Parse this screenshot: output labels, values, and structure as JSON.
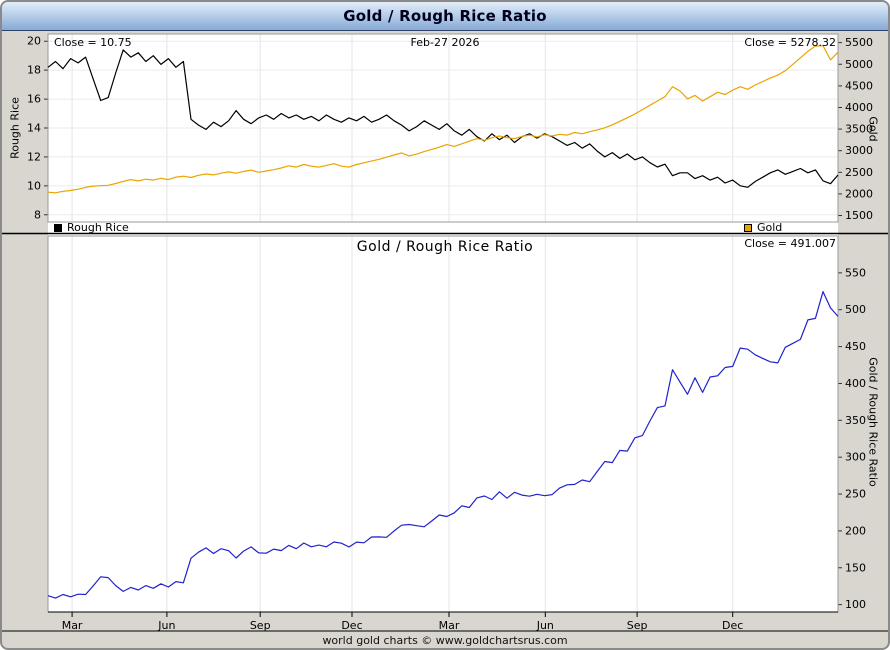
{
  "window": {
    "title": "Gold / Rough Rice Ratio"
  },
  "top_panel": {
    "close_left": "Close = 10.75",
    "date": "Feb-27 2026",
    "close_right": "Close = 5278.32",
    "legend": [
      {
        "label": "Rough Rice",
        "color": "#000000"
      },
      {
        "label": "Gold",
        "color": "#eaa400"
      }
    ]
  },
  "bottom_panel": {
    "title": "Gold / Rough Rice Ratio",
    "close": "Close = 491.007"
  },
  "footer": {
    "text": "world gold charts © www.goldchartsrus.com"
  },
  "chart_data": {
    "type": "line",
    "x_axis": {
      "labels": [
        "Mar",
        "Jun",
        "Sep",
        "Dec",
        "Mar",
        "Jun",
        "Sep",
        "Dec"
      ],
      "fractions": [
        0.0305,
        0.1505,
        0.2686,
        0.3848,
        0.5076,
        0.6295,
        0.7457,
        0.8667
      ]
    },
    "panels": [
      {
        "name": "price-overlay",
        "left_axis": {
          "title": "Rough Rice",
          "min": 7.5,
          "max": 20.5,
          "ticks": [
            8,
            10,
            12,
            14,
            16,
            18,
            20
          ]
        },
        "right_axis": {
          "title": "Gold",
          "min": 1350,
          "max": 5700,
          "ticks": [
            1500,
            2000,
            2500,
            3000,
            3500,
            4000,
            4500,
            5000,
            5500
          ]
        },
        "series": [
          {
            "name": "Rough Rice",
            "axis": "left",
            "color": "#000000",
            "close": 10.75,
            "values": [
              18.2,
              18.6,
              18.1,
              18.8,
              18.5,
              18.9,
              17.4,
              15.9,
              16.1,
              17.8,
              19.4,
              18.9,
              19.2,
              18.6,
              19.0,
              18.4,
              18.8,
              18.2,
              18.6,
              14.6,
              14.2,
              13.9,
              14.4,
              14.1,
              14.5,
              15.2,
              14.6,
              14.3,
              14.7,
              14.9,
              14.6,
              15.0,
              14.7,
              14.9,
              14.6,
              14.8,
              14.5,
              14.9,
              14.6,
              14.4,
              14.7,
              14.5,
              14.8,
              14.4,
              14.6,
              14.9,
              14.5,
              14.2,
              13.8,
              14.1,
              14.5,
              14.2,
              13.9,
              14.3,
              13.8,
              13.5,
              13.9,
              13.4,
              13.1,
              13.6,
              13.2,
              13.5,
              13.0,
              13.4,
              13.6,
              13.3,
              13.6,
              13.4,
              13.1,
              12.8,
              13.0,
              12.6,
              12.9,
              12.4,
              12.0,
              12.3,
              11.9,
              12.2,
              11.8,
              12.0,
              11.6,
              11.3,
              11.5,
              10.7,
              10.9,
              10.9,
              10.5,
              10.7,
              10.4,
              10.6,
              10.2,
              10.4,
              10.0,
              9.9,
              10.3,
              10.6,
              10.9,
              11.1,
              10.8,
              11.0,
              11.2,
              10.9,
              11.1,
              10.35,
              10.15,
              10.75
            ]
          },
          {
            "name": "Gold",
            "axis": "right",
            "color": "#eaa400",
            "close": 5278.32,
            "values": [
              2040,
              2025,
              2060,
              2080,
              2110,
              2150,
              2180,
              2190,
              2200,
              2240,
              2290,
              2330,
              2300,
              2340,
              2320,
              2360,
              2330,
              2390,
              2410,
              2380,
              2430,
              2460,
              2440,
              2480,
              2510,
              2480,
              2520,
              2550,
              2500,
              2530,
              2560,
              2600,
              2650,
              2620,
              2680,
              2640,
              2620,
              2660,
              2700,
              2640,
              2620,
              2680,
              2720,
              2760,
              2800,
              2850,
              2900,
              2950,
              2880,
              2920,
              2980,
              3030,
              3080,
              3140,
              3100,
              3160,
              3220,
              3280,
              3240,
              3300,
              3340,
              3300,
              3280,
              3330,
              3360,
              3320,
              3370,
              3340,
              3380,
              3360,
              3420,
              3390,
              3440,
              3480,
              3530,
              3600,
              3680,
              3760,
              3850,
              3950,
              4050,
              4150,
              4250,
              4480,
              4380,
              4200,
              4280,
              4150,
              4250,
              4350,
              4300,
              4400,
              4480,
              4420,
              4520,
              4600,
              4680,
              4750,
              4850,
              5000,
              5150,
              5300,
              5420,
              5430,
              5100,
              5278.32
            ]
          }
        ]
      },
      {
        "name": "ratio",
        "title": "Gold / Rough Rice Ratio",
        "right_axis": {
          "title": "Gold / Rough Rice Ratio",
          "min": 90,
          "max": 600,
          "ticks": [
            100,
            150,
            200,
            250,
            300,
            350,
            400,
            450,
            500,
            550
          ]
        },
        "series": [
          {
            "name": "Gold / Rough Rice Ratio",
            "axis": "right",
            "color": "#2222cc",
            "close": 491.007,
            "values": [
              112.1,
              108.9,
              113.8,
              110.6,
              114.1,
              113.8,
              125.3,
              137.7,
              136.6,
              125.8,
              118.0,
              123.3,
              119.8,
              125.8,
              122.1,
              128.3,
              123.9,
              131.3,
              129.6,
              163.0,
              171.1,
              177.0,
              169.4,
              175.9,
              173.1,
              163.2,
              172.6,
              178.3,
              170.1,
              169.8,
              175.3,
              173.3,
              180.3,
              175.8,
              183.6,
              178.4,
              180.7,
              178.5,
              184.9,
              183.3,
              178.2,
              184.8,
              183.8,
              191.7,
              191.8,
              191.3,
              200.0,
              207.7,
              208.7,
              207.1,
              205.5,
              213.4,
              221.6,
              219.6,
              224.6,
              234.1,
              231.7,
              244.8,
              247.3,
              242.6,
              253.0,
              244.4,
              252.3,
              248.5,
              247.1,
              249.6,
              247.8,
              249.3,
              258.0,
              262.5,
              263.1,
              269.0,
              266.7,
              280.6,
              294.2,
              292.7,
              309.2,
              308.2,
              326.3,
              329.2,
              349.1,
              367.3,
              369.6,
              418.7,
              401.8,
              385.3,
              407.6,
              387.9,
              408.7,
              410.4,
              421.6,
              423.1,
              448.0,
              446.5,
              438.8,
              434.0,
              429.4,
              427.9,
              449.1,
              454.5,
              459.8,
              486.2,
              488.3,
              524.6,
              502.5,
              491.0
            ]
          }
        ]
      }
    ]
  }
}
